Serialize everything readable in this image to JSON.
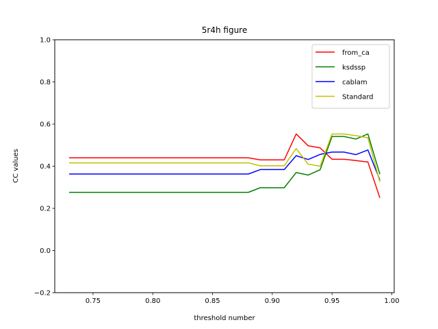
{
  "chart_data": {
    "type": "line",
    "title": "5r4h figure",
    "xlabel": "threshold number",
    "ylabel": "CC values",
    "xlim": [
      0.718,
      1.002
    ],
    "ylim": [
      -0.2,
      1.0
    ],
    "xticks": [
      0.75,
      0.8,
      0.85,
      0.9,
      0.95,
      1.0
    ],
    "xtick_labels": [
      "0.75",
      "0.80",
      "0.85",
      "0.90",
      "0.95",
      "1.00"
    ],
    "yticks": [
      -0.2,
      0.0,
      0.2,
      0.4,
      0.6,
      0.8,
      1.0
    ],
    "ytick_labels": [
      "−0.2",
      "0.0",
      "0.2",
      "0.4",
      "0.6",
      "0.8",
      "1.0"
    ],
    "grid": false,
    "legend_position": "top-right",
    "x": [
      0.73,
      0.74,
      0.75,
      0.76,
      0.77,
      0.78,
      0.79,
      0.8,
      0.81,
      0.82,
      0.83,
      0.84,
      0.85,
      0.86,
      0.87,
      0.88,
      0.89,
      0.9,
      0.91,
      0.92,
      0.93,
      0.94,
      0.95,
      0.96,
      0.97,
      0.98,
      0.99
    ],
    "series": [
      {
        "name": "from_ca",
        "color": "#ff0000",
        "values": [
          0.44,
          0.44,
          0.44,
          0.44,
          0.44,
          0.44,
          0.44,
          0.44,
          0.44,
          0.44,
          0.44,
          0.44,
          0.44,
          0.44,
          0.44,
          0.44,
          0.43,
          0.43,
          0.43,
          0.553,
          0.497,
          0.487,
          0.433,
          0.433,
          0.427,
          0.42,
          0.25
        ]
      },
      {
        "name": "ksdssp",
        "color": "#008000",
        "values": [
          0.276,
          0.276,
          0.276,
          0.276,
          0.276,
          0.276,
          0.276,
          0.276,
          0.276,
          0.276,
          0.276,
          0.276,
          0.276,
          0.276,
          0.276,
          0.276,
          0.298,
          0.298,
          0.298,
          0.37,
          0.358,
          0.383,
          0.541,
          0.541,
          0.529,
          0.553,
          0.362
        ]
      },
      {
        "name": "cablam",
        "color": "#0000ff",
        "values": [
          0.363,
          0.363,
          0.363,
          0.363,
          0.363,
          0.363,
          0.363,
          0.363,
          0.363,
          0.363,
          0.363,
          0.363,
          0.363,
          0.363,
          0.363,
          0.363,
          0.384,
          0.384,
          0.384,
          0.45,
          0.432,
          0.456,
          0.467,
          0.467,
          0.455,
          0.477,
          0.335
        ]
      },
      {
        "name": "Standard",
        "color": "#bfbf00",
        "values": [
          0.416,
          0.416,
          0.416,
          0.416,
          0.416,
          0.416,
          0.416,
          0.416,
          0.416,
          0.416,
          0.416,
          0.416,
          0.416,
          0.416,
          0.416,
          0.416,
          0.402,
          0.402,
          0.402,
          0.484,
          0.41,
          0.4,
          0.553,
          0.553,
          0.545,
          0.535,
          0.325
        ]
      }
    ]
  }
}
